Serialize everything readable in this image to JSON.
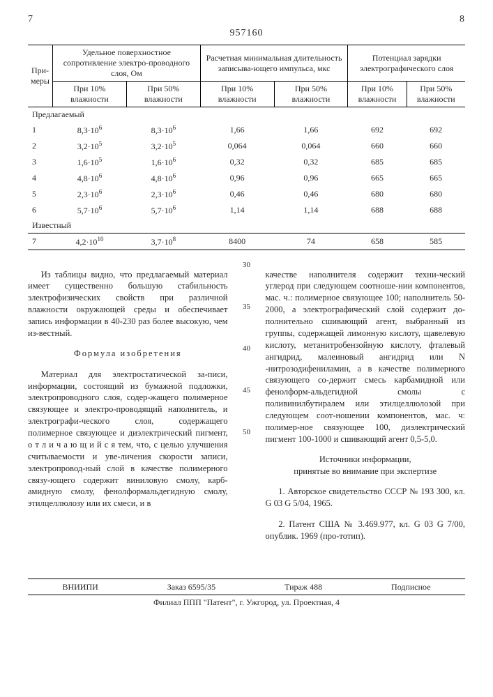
{
  "header": {
    "left_page": "7",
    "patent_number": "957160",
    "right_page": "8"
  },
  "table": {
    "col_headers": {
      "examples": "При-\nмеры",
      "resistance": "Удельное поверхностное сопротивление электро-проводного слоя, Ом",
      "duration": "Расчетная минимальная длительность записыва-ющего импульса, мкс",
      "potential": "Потенциал зарядки электрографического слоя"
    },
    "sub_headers": {
      "h10": "При 10% влажности",
      "h50": "При 50% влажности"
    },
    "group_proposed": "Предлагаемый",
    "group_known": "Известный",
    "rows": [
      {
        "n": "1",
        "r10": "8,3·10",
        "r10e": "6",
        "r50": "8,3·10",
        "r50e": "6",
        "d10": "1,66",
        "d50": "1,66",
        "p10": "692",
        "p50": "692"
      },
      {
        "n": "2",
        "r10": "3,2·10",
        "r10e": "5",
        "r50": "3,2·10",
        "r50e": "5",
        "d10": "0,064",
        "d50": "0,064",
        "p10": "660",
        "p50": "660"
      },
      {
        "n": "3",
        "r10": "1,6·10",
        "r10e": "5",
        "r50": "1,6·10",
        "r50e": "6",
        "d10": "0,32",
        "d50": "0,32",
        "p10": "685",
        "p50": "685"
      },
      {
        "n": "4",
        "r10": "4,8·10",
        "r10e": "6",
        "r50": "4,8·10",
        "r50e": "6",
        "d10": "0,96",
        "d50": "0,96",
        "p10": "665",
        "p50": "665"
      },
      {
        "n": "5",
        "r10": "2,3·10",
        "r10e": "6",
        "r50": "2,3·10",
        "r50e": "6",
        "d10": "0,46",
        "d50": "0,46",
        "p10": "680",
        "p50": "680"
      },
      {
        "n": "6",
        "r10": "5,7·10",
        "r10e": "6",
        "r50": "5,7·10",
        "r50e": "6",
        "d10": "1,14",
        "d50": "1,14",
        "p10": "688",
        "p50": "688"
      }
    ],
    "known_row": {
      "n": "7",
      "r10": "4,2·10",
      "r10e": "10",
      "r50": "3,7·10",
      "r50e": "8",
      "d10": "8400",
      "d50": "74",
      "p10": "658",
      "p50": "585"
    }
  },
  "body": {
    "left_p1": "Из таблицы видно, что предлагаемый материал имеет существенно большую стабильность электрофизических свойств при различной влажности окружающей среды и обеспечивает запись информации в 40-230 раз более высокую, чем из-вестный.",
    "formula_title": "Формула изобретения",
    "left_p2": "Материал для электростатической за-писи, информации, состоящий из бумажной подложки, электропроводного слоя, содер-жащего полимерное связующее и электро-проводящий наполнитель, и электрографи-ческого слоя, содержащего полимерное связующее и диэлектрический пигмент, о т л и ч а ю щ и й с я тем, что, с целью улучшения считываемости и уве-личения скорости записи, электропровод-ный слой в качестве полимерного связу-ющего содержит виниловую смолу, карб-амидную смолу, фенолформальдегидную смолу, этилцеллюлозу или их смеси, и в",
    "right_p1": "качестве наполнителя содержит техни-ческий углерод при следующем соотноше-нии компонентов, мас. ч.: полимерное связующее 100; наполнитель 50-2000, а электрографический слой содержит до-полнительно сшивающий агент, выбранный из группы, содержащей лимонную кислоту, щавелевую кислоту, метанитробензойную кислоту, фталевый ангидрид, малеиновый ангидрид или N -нитрозодифениламин, а в качестве полимерного связующего со-держит смесь карбамидной или фенолформ-альдегидной смолы с поливинилбутиралем или этилцеллюлозой при следующем соот-ношении компонентов, мас. ч: полимер-ное связующее 100, диэлектрический пигмент 100-1000 и сшивающий агент 0,5-5,0.",
    "sources_title": "Источники информации,\nпринятые во внимание при экспертизе",
    "src1": "1. Авторское свидетельство СССР № 193 300, кл. G 03 G 5/04, 1965.",
    "src2": "2. Патент США № 3.469.977, кл. G 03 G 7/00, опублик. 1969 (про-тотип).",
    "linenums": [
      "30",
      "35",
      "40",
      "45",
      "50"
    ]
  },
  "footer": {
    "line1_left": "ВНИИПИ",
    "line1_mid": "Заказ 6595/35",
    "line1_tir": "Тираж 488",
    "line1_right": "Подписное",
    "line2": "Филиал ППП \"Патент\", г. Ужгород, ул. Проектная, 4"
  }
}
